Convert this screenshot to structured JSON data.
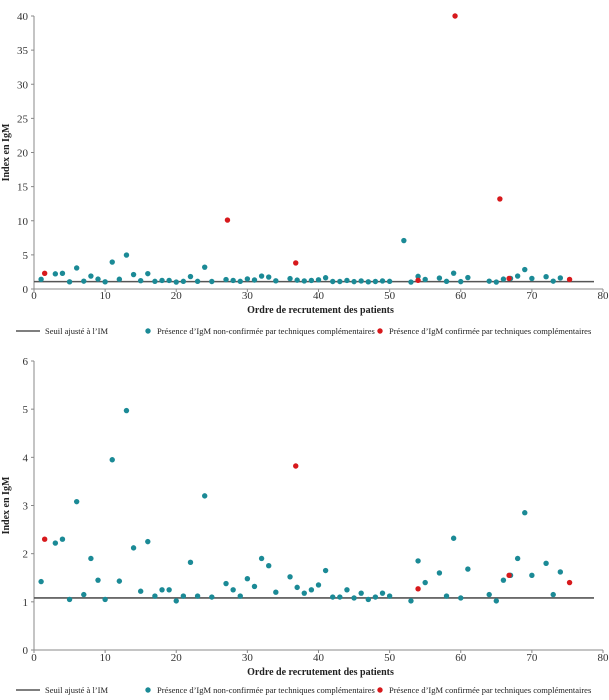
{
  "colors": {
    "teal": "#1b8a96",
    "red": "#d7191c",
    "threshold": "#555555",
    "axis": "#888888",
    "text": "#222222"
  },
  "legend": {
    "threshold": "Seuil ajusté à l’IM",
    "unconfirmed": "Présence d’IgM non-confirmée par techniques complémentaires",
    "confirmed": "Présence d’IgM confirmée par techniques complémentaires"
  },
  "chart_data": [
    {
      "type": "scatter",
      "title": "",
      "xlabel": "Ordre de recrutement des patients",
      "ylabel": "Index en IgM",
      "xlim": [
        0,
        80
      ],
      "ylim": [
        0,
        40
      ],
      "x_ticks": [
        0,
        10,
        20,
        30,
        40,
        50,
        60,
        70,
        80
      ],
      "y_ticks": [
        0,
        5,
        10,
        15,
        20,
        25,
        30,
        35,
        40
      ],
      "grid": false,
      "legend_position": "bottom",
      "threshold": 1.08,
      "series": [
        {
          "name": "Présence d’IgM non-confirmée par techniques complémentaires",
          "color": "#1b8a96",
          "points": [
            [
              1,
              1.42
            ],
            [
              3,
              2.22
            ],
            [
              4,
              2.3
            ],
            [
              5,
              1.05
            ],
            [
              6,
              3.08
            ],
            [
              7,
              1.15
            ],
            [
              8,
              1.9
            ],
            [
              9,
              1.45
            ],
            [
              10,
              1.05
            ],
            [
              11,
              3.95
            ],
            [
              12,
              1.43
            ],
            [
              13,
              4.97
            ],
            [
              14,
              2.12
            ],
            [
              15,
              1.22
            ],
            [
              16,
              2.25
            ],
            [
              17,
              1.12
            ],
            [
              18,
              1.25
            ],
            [
              19,
              1.25
            ],
            [
              20,
              1.02
            ],
            [
              21,
              1.12
            ],
            [
              22,
              1.82
            ],
            [
              23,
              1.12
            ],
            [
              24,
              3.2
            ],
            [
              25,
              1.1
            ],
            [
              27,
              1.38
            ],
            [
              28,
              1.25
            ],
            [
              29,
              1.12
            ],
            [
              30,
              1.48
            ],
            [
              31,
              1.32
            ],
            [
              32,
              1.9
            ],
            [
              33,
              1.75
            ],
            [
              34,
              1.2
            ],
            [
              36,
              1.52
            ],
            [
              37,
              1.3
            ],
            [
              38,
              1.18
            ],
            [
              39,
              1.25
            ],
            [
              40,
              1.35
            ],
            [
              41,
              1.65
            ],
            [
              42,
              1.1
            ],
            [
              43,
              1.1
            ],
            [
              44,
              1.25
            ],
            [
              45,
              1.08
            ],
            [
              46,
              1.18
            ],
            [
              47,
              1.05
            ],
            [
              48,
              1.1
            ],
            [
              49,
              1.18
            ],
            [
              50,
              1.12
            ],
            [
              52,
              7.1
            ],
            [
              53,
              1.02
            ],
            [
              54,
              1.85
            ],
            [
              55,
              1.4
            ],
            [
              57,
              1.6
            ],
            [
              58,
              1.12
            ],
            [
              59,
              2.32
            ],
            [
              60,
              1.08
            ],
            [
              61,
              1.68
            ],
            [
              64,
              1.15
            ],
            [
              65,
              1.02
            ],
            [
              66,
              1.45
            ],
            [
              67,
              1.55
            ],
            [
              68,
              1.9
            ],
            [
              69,
              2.85
            ],
            [
              70,
              1.55
            ],
            [
              72,
              1.8
            ],
            [
              73,
              1.15
            ],
            [
              74,
              1.62
            ]
          ]
        },
        {
          "name": "Présence d’IgM confirmée par techniques complémentaires",
          "color": "#d7191c",
          "points": [
            [
              1.5,
              2.3
            ],
            [
              27.2,
              10.1
            ],
            [
              36.8,
              3.82
            ],
            [
              54,
              1.27
            ],
            [
              59.2,
              40
            ],
            [
              65.5,
              13.2
            ],
            [
              66.8,
              1.55
            ],
            [
              75.3,
              1.4
            ]
          ]
        }
      ]
    },
    {
      "type": "scatter",
      "title": "",
      "xlabel": "Ordre de recrutement des patients",
      "ylabel": "Index en IgM",
      "xlim": [
        0,
        80
      ],
      "ylim": [
        0,
        6
      ],
      "x_ticks": [
        0,
        10,
        20,
        30,
        40,
        50,
        60,
        70,
        80
      ],
      "y_ticks": [
        0,
        1,
        2,
        3,
        4,
        5,
        6
      ],
      "grid": false,
      "legend_position": "bottom",
      "threshold": 1.08,
      "series": [
        {
          "name": "Présence d’IgM non-confirmée par techniques complémentaires",
          "color": "#1b8a96",
          "points": [
            [
              1,
              1.42
            ],
            [
              3,
              2.22
            ],
            [
              4,
              2.3
            ],
            [
              5,
              1.05
            ],
            [
              6,
              3.08
            ],
            [
              7,
              1.15
            ],
            [
              8,
              1.9
            ],
            [
              9,
              1.45
            ],
            [
              10,
              1.05
            ],
            [
              11,
              3.95
            ],
            [
              12,
              1.43
            ],
            [
              13,
              4.97
            ],
            [
              14,
              2.12
            ],
            [
              15,
              1.22
            ],
            [
              16,
              2.25
            ],
            [
              17,
              1.12
            ],
            [
              18,
              1.25
            ],
            [
              19,
              1.25
            ],
            [
              20,
              1.02
            ],
            [
              21,
              1.12
            ],
            [
              22,
              1.82
            ],
            [
              23,
              1.12
            ],
            [
              24,
              3.2
            ],
            [
              25,
              1.1
            ],
            [
              27,
              1.38
            ],
            [
              28,
              1.25
            ],
            [
              29,
              1.12
            ],
            [
              30,
              1.48
            ],
            [
              31,
              1.32
            ],
            [
              32,
              1.9
            ],
            [
              33,
              1.75
            ],
            [
              34,
              1.2
            ],
            [
              36,
              1.52
            ],
            [
              37,
              1.3
            ],
            [
              38,
              1.18
            ],
            [
              39,
              1.25
            ],
            [
              40,
              1.35
            ],
            [
              41,
              1.65
            ],
            [
              42,
              1.1
            ],
            [
              43,
              1.1
            ],
            [
              44,
              1.25
            ],
            [
              45,
              1.08
            ],
            [
              46,
              1.18
            ],
            [
              47,
              1.05
            ],
            [
              48,
              1.1
            ],
            [
              49,
              1.18
            ],
            [
              50,
              1.12
            ],
            [
              53,
              1.02
            ],
            [
              54,
              1.85
            ],
            [
              55,
              1.4
            ],
            [
              57,
              1.6
            ],
            [
              58,
              1.12
            ],
            [
              59,
              2.32
            ],
            [
              60,
              1.08
            ],
            [
              61,
              1.68
            ],
            [
              64,
              1.15
            ],
            [
              65,
              1.02
            ],
            [
              66,
              1.45
            ],
            [
              67,
              1.55
            ],
            [
              68,
              1.9
            ],
            [
              69,
              2.85
            ],
            [
              70,
              1.55
            ],
            [
              72,
              1.8
            ],
            [
              73,
              1.15
            ],
            [
              74,
              1.62
            ]
          ]
        },
        {
          "name": "Présence d’IgM confirmée par techniques complémentaires",
          "color": "#d7191c",
          "points": [
            [
              1.5,
              2.3
            ],
            [
              36.8,
              3.82
            ],
            [
              54,
              1.27
            ],
            [
              66.8,
              1.55
            ],
            [
              75.3,
              1.4
            ]
          ]
        }
      ]
    }
  ]
}
